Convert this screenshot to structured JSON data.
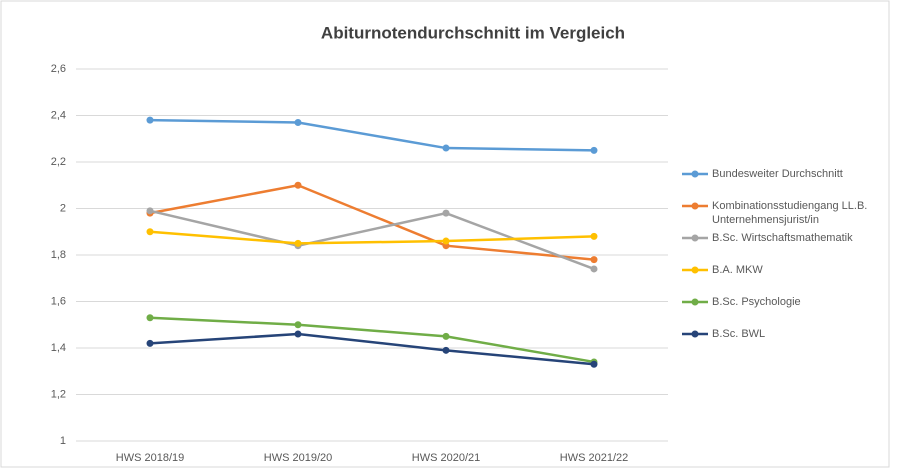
{
  "chart_data": {
    "type": "line",
    "title": "Abiturnotendurchschnitt im Vergleich",
    "categories": [
      "HWS 2018/19",
      "HWS 2019/20",
      "HWS 2020/21",
      "HWS 2021/22"
    ],
    "series": [
      {
        "name": "Bundesweiter Durchschnitt",
        "color": "#5b9bd5",
        "values": [
          2.38,
          2.37,
          2.26,
          2.25
        ]
      },
      {
        "name": "Kombinationsstudiengang LL.B. Unternehmensjurist/in",
        "color": "#ed7d31",
        "values": [
          1.98,
          2.1,
          1.84,
          1.78
        ]
      },
      {
        "name": "B.Sc. Wirtschaftsmathematik",
        "color": "#a5a5a5",
        "values": [
          1.99,
          1.84,
          1.98,
          1.74
        ]
      },
      {
        "name": "B.A. MKW",
        "color": "#ffc000",
        "values": [
          1.9,
          1.85,
          1.86,
          1.88
        ]
      },
      {
        "name": "B.Sc. Psychologie",
        "color": "#70ad47",
        "values": [
          1.53,
          1.5,
          1.45,
          1.34
        ]
      },
      {
        "name": "B.Sc. BWL",
        "color": "#264478",
        "values": [
          1.42,
          1.46,
          1.39,
          1.33
        ]
      }
    ],
    "ylim": [
      1,
      2.6
    ],
    "yticks": [
      1,
      {
        "value": 1.2,
        "label": "1,2"
      },
      {
        "value": 1.4,
        "label": "1,4"
      },
      {
        "value": 1.6,
        "label": "1,6"
      },
      {
        "value": 1.8,
        "label": "1,8"
      },
      2,
      {
        "value": 2.2,
        "label": "2,2"
      },
      {
        "value": 2.4,
        "label": "2,4"
      },
      {
        "value": 2.6,
        "label": "2,6"
      }
    ],
    "grid": true,
    "legend": "right"
  }
}
